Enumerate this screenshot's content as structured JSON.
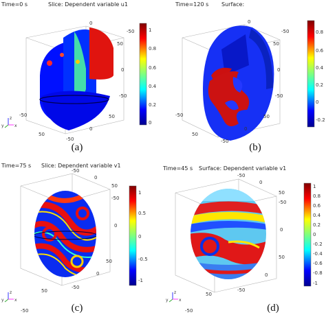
{
  "figure": {
    "panels": [
      {
        "id": "a",
        "time_label": "Time=0 s",
        "plot_label": "Slice: Dependent variable u1",
        "caption": "(a)",
        "colorbar_ticks": [
          "1",
          "0.8",
          "0.6",
          "0.4",
          "0.2",
          "0"
        ],
        "axis_ticks": [
          "0",
          "-50",
          "50",
          "0",
          "-50",
          "50",
          "0",
          "-50",
          "50",
          "-50"
        ]
      },
      {
        "id": "b",
        "time_label": "Time=120 s",
        "plot_label": "Surface:",
        "caption": "(b)",
        "colorbar_ticks": [
          "0.8",
          "0.6",
          "0.4",
          "0.2",
          "0",
          "-0.2"
        ],
        "axis_ticks": [
          "0",
          "-50",
          "50",
          "0",
          "-50",
          "50",
          "0",
          "-50",
          "50",
          "-50"
        ]
      },
      {
        "id": "c",
        "time_label": "Time=75 s",
        "plot_label": "Slice: Dependent variable v1",
        "caption": "(c)",
        "colorbar_ticks": [
          "1",
          "0.5",
          "0",
          "-0.5",
          "-1"
        ],
        "axis_ticks": [
          "-50",
          "0",
          "50",
          "-50",
          "0",
          "50",
          "0",
          "-50",
          "50",
          "-50"
        ]
      },
      {
        "id": "d",
        "time_label": "Time=45 s",
        "plot_label": "Surface: Dependent variable v1",
        "caption": "(d)",
        "colorbar_ticks": [
          "1",
          "0.8",
          "0.6",
          "0.4",
          "0.2",
          "0",
          "-0.2",
          "-0.4",
          "-0.6",
          "-0.8",
          "-1"
        ],
        "axis_ticks": [
          "-50",
          "0",
          "50",
          "-50",
          "0",
          "50",
          "0",
          "-50",
          "50",
          "-50"
        ]
      }
    ],
    "axis_triad": {
      "x": "x",
      "y": "y",
      "z": "z"
    },
    "colormap": [
      "#00008f",
      "#0000ff",
      "#00a0ff",
      "#00ffff",
      "#7fff7f",
      "#ffff00",
      "#ff9f00",
      "#ff0000",
      "#800000"
    ]
  }
}
